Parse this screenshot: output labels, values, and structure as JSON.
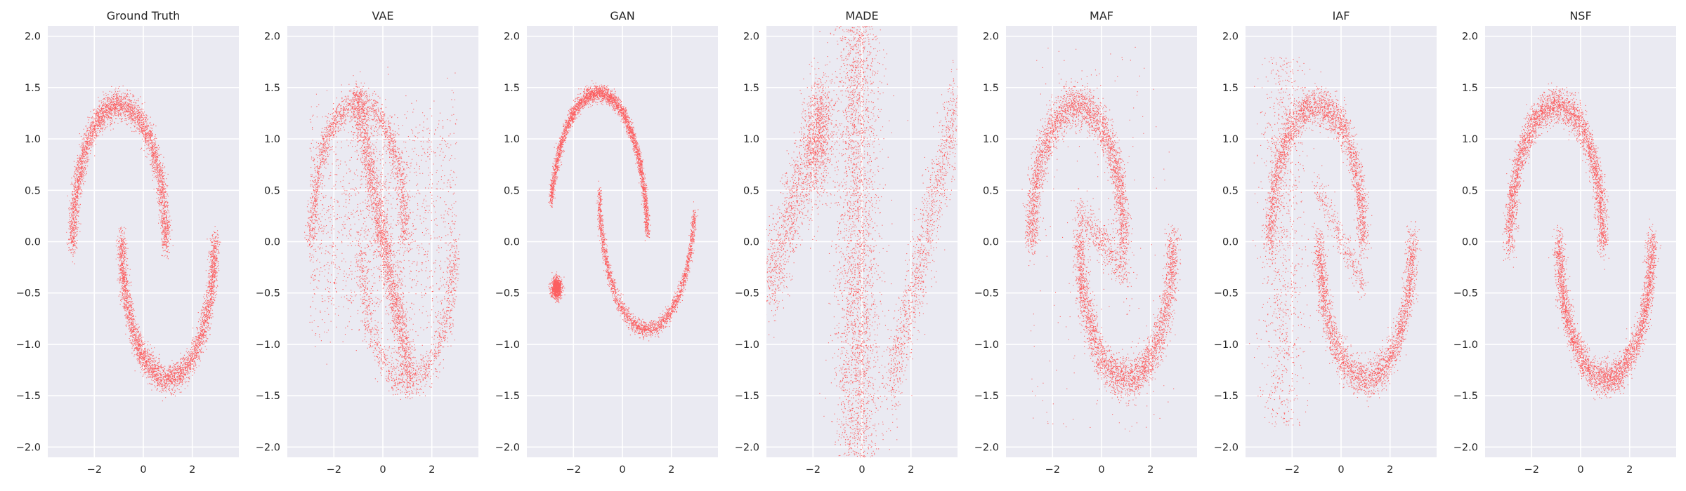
{
  "figure": {
    "point_color": "#ff4545",
    "background_color": "#eaeaf2"
  },
  "chart_data": [
    {
      "type": "scatter",
      "title": "Ground Truth",
      "model": "truth",
      "xlim": [
        -3.9,
        3.9
      ],
      "ylim": [
        -2.1,
        2.1
      ],
      "xticks": [
        -2,
        0,
        2
      ],
      "xtick_labels": [
        "−2",
        "0",
        "2"
      ],
      "yticks": [
        -2.0,
        -1.5,
        -1.0,
        -0.5,
        0.0,
        0.5,
        1.0,
        1.5,
        2.0
      ],
      "ytick_labels": [
        "−2.0",
        "−1.5",
        "−1.0",
        "−0.5",
        "0.0",
        "0.5",
        "1.0",
        "1.5",
        "2.0"
      ],
      "grid": true,
      "color": "#ff4545"
    },
    {
      "type": "scatter",
      "title": "VAE",
      "model": "vae",
      "xlim": [
        -3.9,
        3.9
      ],
      "ylim": [
        -2.1,
        2.1
      ],
      "xticks": [
        -2,
        0,
        2
      ],
      "xtick_labels": [
        "−2",
        "0",
        "2"
      ],
      "yticks": [
        -2.0,
        -1.5,
        -1.0,
        -0.5,
        0.0,
        0.5,
        1.0,
        1.5,
        2.0
      ],
      "ytick_labels": [
        "−2.0",
        "−1.5",
        "−1.0",
        "−0.5",
        "0.0",
        "0.5",
        "1.0",
        "1.5",
        "2.0"
      ],
      "grid": true,
      "color": "#ff4545"
    },
    {
      "type": "scatter",
      "title": "GAN",
      "model": "gan",
      "xlim": [
        -3.9,
        3.9
      ],
      "ylim": [
        -2.1,
        2.1
      ],
      "xticks": [
        -2,
        0,
        2
      ],
      "xtick_labels": [
        "−2",
        "0",
        "2"
      ],
      "yticks": [
        -2.0,
        -1.5,
        -1.0,
        -0.5,
        0.0,
        0.5,
        1.0,
        1.5,
        2.0
      ],
      "ytick_labels": [
        "−2.0",
        "−1.5",
        "−1.0",
        "−0.5",
        "0.0",
        "0.5",
        "1.0",
        "1.5",
        "2.0"
      ],
      "grid": true,
      "color": "#ff4545"
    },
    {
      "type": "scatter",
      "title": "MADE",
      "model": "made",
      "xlim": [
        -3.9,
        3.9
      ],
      "ylim": [
        -2.1,
        2.1
      ],
      "xticks": [
        -2,
        0,
        2
      ],
      "xtick_labels": [
        "−2",
        "0",
        "2"
      ],
      "yticks": [
        -2.0,
        -1.5,
        -1.0,
        -0.5,
        0.0,
        0.5,
        1.0,
        1.5,
        2.0
      ],
      "ytick_labels": [
        "−2.0",
        "−1.5",
        "−1.0",
        "−0.5",
        "0.0",
        "0.5",
        "1.0",
        "1.5",
        "2.0"
      ],
      "grid": true,
      "color": "#ff4545"
    },
    {
      "type": "scatter",
      "title": "MAF",
      "model": "maf",
      "xlim": [
        -3.9,
        3.9
      ],
      "ylim": [
        -2.1,
        2.1
      ],
      "xticks": [
        -2,
        0,
        2
      ],
      "xtick_labels": [
        "−2",
        "0",
        "2"
      ],
      "yticks": [
        -2.0,
        -1.5,
        -1.0,
        -0.5,
        0.0,
        0.5,
        1.0,
        1.5,
        2.0
      ],
      "ytick_labels": [
        "−2.0",
        "−1.5",
        "−1.0",
        "−0.5",
        "0.0",
        "0.5",
        "1.0",
        "1.5",
        "2.0"
      ],
      "grid": true,
      "color": "#ff4545"
    },
    {
      "type": "scatter",
      "title": "IAF",
      "model": "iaf",
      "xlim": [
        -3.9,
        3.9
      ],
      "ylim": [
        -2.1,
        2.1
      ],
      "xticks": [
        -2,
        0,
        2
      ],
      "xtick_labels": [
        "−2",
        "0",
        "2"
      ],
      "yticks": [
        -2.0,
        -1.5,
        -1.0,
        -0.5,
        0.0,
        0.5,
        1.0,
        1.5,
        2.0
      ],
      "ytick_labels": [
        "−2.0",
        "−1.5",
        "−1.0",
        "−0.5",
        "0.0",
        "0.5",
        "1.0",
        "1.5",
        "2.0"
      ],
      "grid": true,
      "color": "#ff4545"
    },
    {
      "type": "scatter",
      "title": "NSF",
      "model": "nsf",
      "xlim": [
        -3.9,
        3.9
      ],
      "ylim": [
        -2.1,
        2.1
      ],
      "xticks": [
        -2,
        0,
        2
      ],
      "xtick_labels": [
        "−2",
        "0",
        "2"
      ],
      "yticks": [
        -2.0,
        -1.5,
        -1.0,
        -0.5,
        0.0,
        0.5,
        1.0,
        1.5,
        2.0
      ],
      "ytick_labels": [
        "−2.0",
        "−1.5",
        "−1.0",
        "−0.5",
        "0.0",
        "0.5",
        "1.0",
        "1.5",
        "2.0"
      ],
      "grid": true,
      "color": "#ff4545"
    }
  ]
}
